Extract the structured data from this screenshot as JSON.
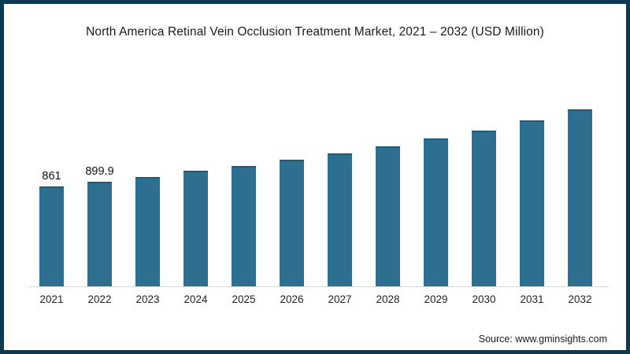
{
  "chart_data": {
    "type": "bar",
    "title": "North America Retinal Vein Occlusion Treatment Market, 2021 – 2032 (USD Million)",
    "xlabel": "",
    "ylabel": "",
    "categories": [
      "2021",
      "2022",
      "2023",
      "2024",
      "2025",
      "2026",
      "2027",
      "2028",
      "2029",
      "2030",
      "2031",
      "2032"
    ],
    "values": [
      861,
      899.9,
      943,
      995,
      1038,
      1090,
      1145,
      1205,
      1272,
      1340,
      1425,
      1520
    ],
    "data_labels": [
      "861",
      "899.9",
      "",
      "",
      "",
      "",
      "",
      "",
      "",
      "",
      "",
      ""
    ],
    "ylim": [
      0,
      1600
    ],
    "grid": false,
    "legend_position": "none",
    "bar_color": "#2e6e8e",
    "bar_cap_color": "#1f5c7c",
    "baseline_color": "#d9d9d9"
  },
  "frame": {
    "border_color": "#0d3a52",
    "background": "#ffffff"
  },
  "source": {
    "label": "Source: www.gminsights.com"
  }
}
